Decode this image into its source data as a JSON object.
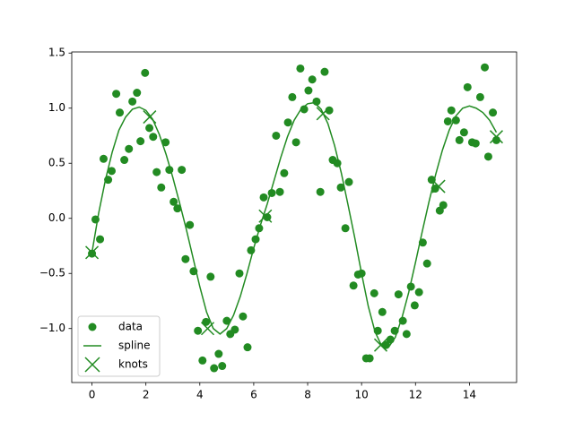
{
  "chart_data": {
    "type": "combo",
    "xlim": [
      -0.75,
      15.75
    ],
    "ylim": [
      -1.49,
      1.51
    ],
    "xticks": [
      0,
      2,
      4,
      6,
      8,
      10,
      12,
      14
    ],
    "yticks": [
      {
        "value": -1.0,
        "label": "−1.0"
      },
      {
        "value": -0.5,
        "label": "−0.5"
      },
      {
        "value": 0.0,
        "label": "0.0"
      },
      0.5,
      {
        "value": 1.0,
        "label": "1.0"
      },
      1.5
    ],
    "legend": "lower left",
    "series": [
      {
        "name": "data",
        "type": "scatter",
        "marker": "circle",
        "color": "#228b22",
        "x": [
          0,
          0.13,
          0.3,
          0.43,
          0.6,
          0.73,
          0.9,
          1.03,
          1.2,
          1.37,
          1.5,
          1.67,
          1.8,
          1.97,
          2.13,
          2.27,
          2.4,
          2.57,
          2.73,
          2.87,
          3.03,
          3.17,
          3.33,
          3.47,
          3.63,
          3.77,
          3.93,
          4.1,
          4.23,
          4.4,
          4.53,
          4.7,
          4.83,
          5.0,
          5.13,
          5.3,
          5.47,
          5.6,
          5.77,
          5.9,
          6.07,
          6.2,
          6.37,
          6.5,
          6.67,
          6.83,
          6.97,
          7.13,
          7.27,
          7.43,
          7.57,
          7.73,
          7.87,
          8.03,
          8.17,
          8.33,
          8.47,
          8.63,
          8.8,
          8.93,
          9.1,
          9.23,
          9.4,
          9.53,
          9.7,
          9.87,
          10.0,
          10.17,
          10.3,
          10.47,
          10.6,
          10.77,
          10.9,
          11.07,
          11.23,
          11.37,
          11.53,
          11.67,
          11.83,
          11.97,
          12.13,
          12.27,
          12.43,
          12.6,
          12.73,
          12.9,
          13.03,
          13.2,
          13.33,
          13.5,
          13.63,
          13.8,
          13.93,
          14.1,
          14.23,
          14.4,
          14.57,
          14.7,
          14.87,
          15.0
        ],
        "values": [
          -0.32,
          -0.01,
          -0.19,
          0.54,
          0.35,
          0.43,
          1.13,
          0.96,
          0.53,
          0.63,
          1.06,
          1.14,
          0.7,
          1.32,
          0.82,
          0.74,
          0.42,
          0.28,
          0.69,
          0.44,
          0.15,
          0.09,
          0.44,
          -0.37,
          -0.06,
          -0.48,
          -1.02,
          -1.29,
          -0.94,
          -0.53,
          -1.36,
          -1.23,
          -1.34,
          -0.93,
          -1.05,
          -1.01,
          -0.5,
          -0.89,
          -1.17,
          -0.29,
          -0.19,
          -0.09,
          0.19,
          0.01,
          0.23,
          0.75,
          0.24,
          0.41,
          0.87,
          1.1,
          0.69,
          1.36,
          0.99,
          1.16,
          1.26,
          1.06,
          0.24,
          1.33,
          0.98,
          0.53,
          0.5,
          0.28,
          -0.09,
          0.33,
          -0.61,
          -0.51,
          -0.5,
          -1.27,
          -1.27,
          -0.68,
          -1.02,
          -0.85,
          -1.15,
          -1.1,
          -1.02,
          -0.69,
          -0.93,
          -1.05,
          -0.62,
          -0.79,
          -0.67,
          -0.22,
          -0.41,
          0.35,
          0.27,
          0.07,
          0.12,
          0.88,
          0.98,
          0.89,
          0.71,
          0.78,
          1.19,
          0.69,
          0.68,
          1.1,
          1.37,
          0.56,
          0.96,
          0.71
        ]
      },
      {
        "name": "spline",
        "type": "line",
        "color": "#228b22",
        "x": [
          0,
          0.25,
          0.5,
          0.75,
          1,
          1.25,
          1.5,
          1.75,
          2,
          2.25,
          2.5,
          2.75,
          3,
          3.25,
          3.5,
          3.75,
          4,
          4.25,
          4.5,
          4.75,
          5,
          5.25,
          5.5,
          5.75,
          6,
          6.25,
          6.5,
          6.75,
          7,
          7.25,
          7.5,
          7.75,
          8,
          8.25,
          8.5,
          8.75,
          9,
          9.25,
          9.5,
          9.75,
          10,
          10.25,
          10.5,
          10.75,
          11,
          11.25,
          11.5,
          11.75,
          12,
          12.25,
          12.5,
          12.75,
          13,
          13.25,
          13.5,
          13.75,
          14,
          14.25,
          14.5,
          14.75,
          15
        ],
        "values": [
          -0.31,
          0.05,
          0.35,
          0.6,
          0.8,
          0.92,
          0.99,
          1.01,
          0.98,
          0.9,
          0.76,
          0.58,
          0.37,
          0.14,
          -0.1,
          -0.36,
          -0.62,
          -0.85,
          -1.0,
          -1.05,
          -1.0,
          -0.88,
          -0.71,
          -0.5,
          -0.27,
          -0.06,
          0.13,
          0.34,
          0.55,
          0.74,
          0.89,
          0.99,
          1.04,
          1.05,
          0.99,
          0.86,
          0.66,
          0.41,
          0.12,
          -0.18,
          -0.5,
          -0.8,
          -1.03,
          -1.16,
          -1.17,
          -1.08,
          -0.9,
          -0.67,
          -0.4,
          -0.12,
          0.15,
          0.4,
          0.62,
          0.8,
          0.93,
          1.0,
          1.02,
          1.0,
          0.96,
          0.89,
          0.78
        ]
      },
      {
        "name": "knots",
        "type": "scatter",
        "marker": "x",
        "color": "#228b22",
        "x": [
          0,
          2.14,
          4.29,
          6.43,
          8.57,
          10.71,
          12.86,
          15
        ],
        "values": [
          -0.31,
          0.92,
          -1.0,
          0.02,
          0.95,
          -1.15,
          0.29,
          0.74
        ]
      }
    ]
  }
}
